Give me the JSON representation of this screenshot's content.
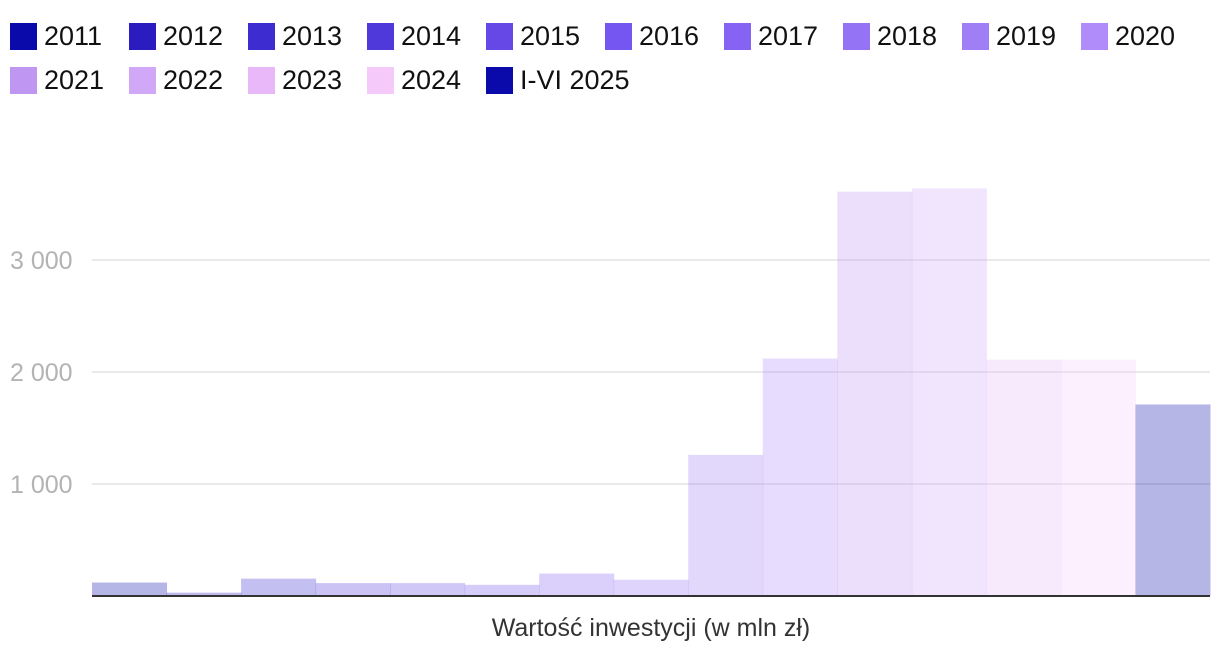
{
  "chart_data": {
    "type": "bar",
    "xlabel": "Wartość inwestycji (w mln zł)",
    "ylabel": "",
    "ylim": [
      0,
      3800
    ],
    "yticks": [
      1000,
      2000,
      3000
    ],
    "ytick_labels": [
      "1 000",
      "2 000",
      "3 000"
    ],
    "grid": true,
    "legend_position": "top-left",
    "series": [
      {
        "name": "2011",
        "color": "#0a0aab",
        "value": 120
      },
      {
        "name": "2012",
        "color": "#2b1cbf",
        "value": 30
      },
      {
        "name": "2013",
        "color": "#3d2ccf",
        "value": 155
      },
      {
        "name": "2014",
        "color": "#5039db",
        "value": 115
      },
      {
        "name": "2015",
        "color": "#6548e6",
        "value": 115
      },
      {
        "name": "2016",
        "color": "#7656f0",
        "value": 100
      },
      {
        "name": "2017",
        "color": "#8663f2",
        "value": 200
      },
      {
        "name": "2018",
        "color": "#9473f4",
        "value": 145
      },
      {
        "name": "2019",
        "color": "#a07ef5",
        "value": 1260
      },
      {
        "name": "2020",
        "color": "#b08cfb",
        "value": 2120
      },
      {
        "name": "2021",
        "color": "#c096f3",
        "value": 3610
      },
      {
        "name": "2022",
        "color": "#d1a7f7",
        "value": 3640
      },
      {
        "name": "2023",
        "color": "#e8b8f9",
        "value": 2110
      },
      {
        "name": "2024",
        "color": "#f6c9fb",
        "value": 2110
      },
      {
        "name": "I-VI 2025",
        "color": "#0a0aab",
        "value": 1710
      }
    ]
  }
}
